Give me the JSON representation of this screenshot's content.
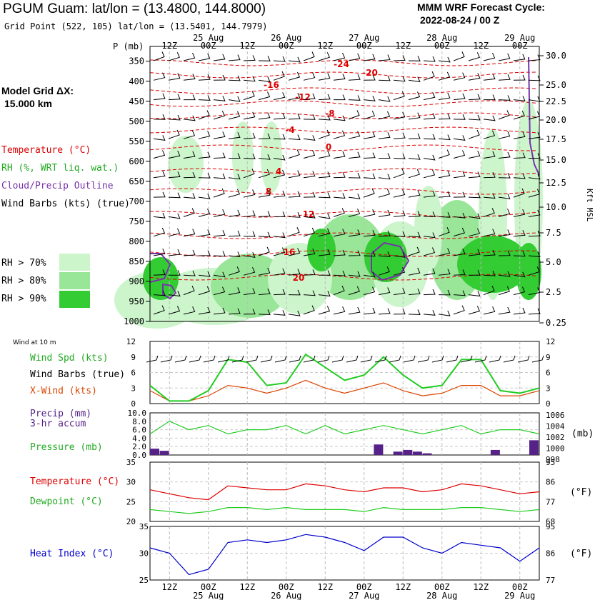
{
  "header": {
    "title": "PGUM Guam:  lat/lon = (13.4800, 144.8000)",
    "subtitle": "Grid Point (522, 105) lat/lon = (13.5401, 144.7979)",
    "cycle_line1": "MMM WRF Forecast Cycle:",
    "cycle_line2": "2022-08-24 / 00  Z",
    "grid_label": "Model Grid ΔX:",
    "grid_value": "15.000 km"
  },
  "legend": {
    "temperature": "Temperature (°C)",
    "rh": "RH (%, WRT liq. wat.)",
    "cloud": "Cloud/Precip Outline",
    "wind": "Wind Barbs (kts) (true)",
    "rh70": "RH > 70%",
    "rh80": "RH > 80%",
    "rh90": "RH > 90%",
    "wind10m_title": "Wind at 10 m",
    "wind_spd": "Wind Spd (kts)",
    "wind_barbs": "Wind Barbs (true)",
    "xwind": "X-Wind (kts)",
    "precip": "Precip (mm)",
    "precip2": "3-hr accum",
    "pressure": "Pressure (mb)",
    "pressure_units": "(mb)",
    "temp_c": "Temperature (°C)",
    "dew_c": "Dewpoint (°C)",
    "degf": "(°F)",
    "heat": "Heat Index (°C)",
    "p_axis": "P (mb)",
    "kft_axis": "Kft MSL"
  },
  "colors": {
    "temp": "#dd0000",
    "rh70": "#ccf5cc",
    "rh80": "#99e699",
    "rh90": "#33cc33",
    "cloud": "#7733aa",
    "wind_spd": "#22cc22",
    "xwind": "#dd4400",
    "precip": "#552288",
    "pressure": "#22cc22",
    "heat": "#0000cc",
    "dew": "#22cc22"
  },
  "chart_data": [
    {
      "type": "heatmap",
      "panel": "cross-section",
      "time_ticks": [
        "12Z",
        "00Z",
        "12Z",
        "00Z",
        "12Z",
        "00Z",
        "12Z",
        "00Z",
        "12Z",
        "00Z"
      ],
      "day_labels": [
        "25 Aug",
        "26 Aug",
        "27 Aug",
        "28 Aug",
        "29 Aug"
      ],
      "pressure_levels": [
        "350",
        "400",
        "450",
        "500",
        "550",
        "600",
        "650",
        "700",
        "750",
        "800",
        "850",
        "900",
        "950",
        "1000"
      ],
      "height_kft": [
        "30.0",
        "25.0",
        "22.5",
        "20.0",
        "17.5",
        "15.0",
        "12.5",
        "10.0",
        "7.5",
        "5.0",
        "2.5",
        "0.25"
      ],
      "temperature_labels": [
        "-24",
        "-20",
        "-16",
        "-12",
        "-8",
        "-4",
        "0",
        "4",
        "8",
        "12",
        "16",
        "20"
      ]
    },
    {
      "type": "line",
      "panel": "wind",
      "y_ticks": [
        "0",
        "3",
        "6",
        "9",
        "12"
      ],
      "ylim": [
        0,
        12
      ],
      "x_hours": [
        0,
        6,
        12,
        18,
        24,
        30,
        36,
        42,
        48,
        54,
        60,
        66,
        72,
        78,
        84,
        90,
        96,
        102,
        108,
        114,
        120
      ],
      "series": [
        {
          "name": "Wind Spd (kts)",
          "values": [
            3.5,
            0.5,
            0.5,
            2.5,
            8.5,
            8,
            3.5,
            4,
            9.5,
            7,
            4.5,
            5.5,
            9,
            5.5,
            3,
            3.5,
            8.5,
            8.5,
            2.5,
            2,
            3
          ]
        },
        {
          "name": "X-Wind (kts)",
          "values": [
            2.5,
            0.5,
            0.5,
            1.5,
            3.5,
            3,
            2,
            3,
            4.5,
            3,
            2,
            3,
            4,
            2.5,
            1.5,
            2,
            3.5,
            3.5,
            1.5,
            1.5,
            2.5
          ]
        }
      ]
    },
    {
      "type": "bar",
      "panel": "precip-pressure",
      "y_ticks_left": [
        "0.0",
        "2.0",
        "4.0",
        "6.0",
        "8.0",
        "10.0"
      ],
      "y_ticks_right": [
        "998",
        "1000",
        "1002",
        "1004",
        "1006"
      ],
      "precip_mm_3hr": [
        {
          "hour": 0,
          "value": 1.5
        },
        {
          "hour": 3,
          "value": 1.0
        },
        {
          "hour": 69,
          "value": 2.5
        },
        {
          "hour": 75,
          "value": 0.8
        },
        {
          "hour": 78,
          "value": 1.2
        },
        {
          "hour": 81,
          "value": 0.8
        },
        {
          "hour": 84,
          "value": 0.4
        },
        {
          "hour": 105,
          "value": 1.2
        },
        {
          "hour": 120,
          "value": 3.5
        }
      ],
      "pressure_mb": [
        1002,
        1005,
        1003,
        1004,
        1002,
        1003,
        1003,
        1004,
        1002,
        1004,
        1002,
        1003,
        1004,
        1003,
        1002,
        1003,
        1004,
        1002,
        1003,
        1003,
        1002
      ]
    },
    {
      "type": "line",
      "panel": "temp-dew",
      "y_ticks_left": [
        "20",
        "25",
        "30",
        "35"
      ],
      "y_ticks_right": [
        "68",
        "77",
        "86",
        "95"
      ],
      "series": [
        {
          "name": "Temperature (°C)",
          "values": [
            28,
            27,
            26,
            25.5,
            29,
            28.5,
            28,
            28,
            29.5,
            29,
            28,
            27.5,
            28.5,
            28.5,
            27.5,
            28,
            29.5,
            29,
            28,
            27,
            27.5
          ]
        },
        {
          "name": "Dewpoint (°C)",
          "values": [
            23,
            22.5,
            22,
            22.5,
            23.5,
            23.5,
            23,
            23.5,
            23,
            23,
            23,
            22.5,
            23.5,
            23,
            23,
            23,
            23.5,
            23.5,
            23,
            22.5,
            23
          ]
        }
      ]
    },
    {
      "type": "line",
      "panel": "heat-index",
      "y_ticks_left": [
        "25",
        "30",
        "35"
      ],
      "y_ticks_right": [
        "77",
        "86",
        "95"
      ],
      "series": [
        {
          "name": "Heat Index (°C)",
          "values": [
            31,
            30,
            26,
            27,
            32,
            32.5,
            32,
            32.5,
            33.5,
            33,
            32,
            30.5,
            33,
            33,
            31,
            30,
            32,
            31.5,
            31,
            28.5,
            31
          ]
        }
      ]
    }
  ]
}
